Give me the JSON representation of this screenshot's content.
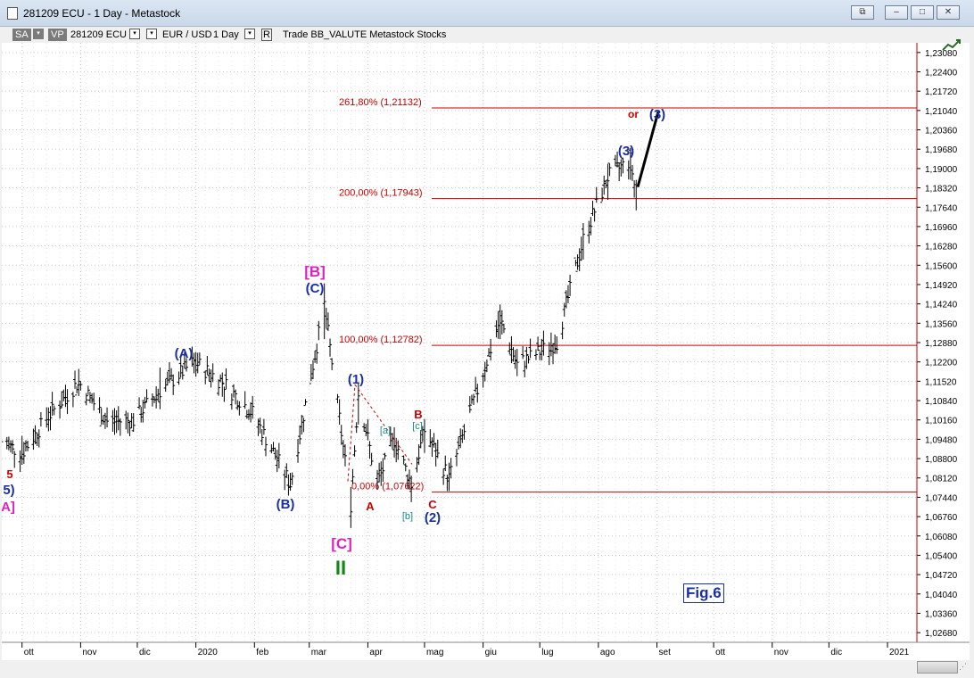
{
  "window": {
    "title": "281209 ECU - 1 Day - Metastock",
    "buttons": [
      "restore-icon",
      "minimize-icon",
      "maximize-icon",
      "close-icon"
    ]
  },
  "toolbar": {
    "sa": "SA",
    "vp": "VP",
    "symbol": "281209 ECU",
    "pair": "EUR / USD",
    "period": "1 Day",
    "r": "R",
    "rest": "Trade  BB_VALUTE  Metastock  Stocks"
  },
  "chart_data": {
    "type": "ohlc",
    "instrument": "EUR / USD",
    "y_ticks": [
      "1,23080",
      "1,22400",
      "1,21720",
      "1,21040",
      "1,20360",
      "1,19680",
      "1,19000",
      "1,18320",
      "1,17640",
      "1,16960",
      "1,16280",
      "1,15600",
      "1,14920",
      "1,14240",
      "1,13560",
      "1,12880",
      "1,12200",
      "1,11520",
      "1,10840",
      "1,10160",
      "1,09480",
      "1,08800",
      "1,08120",
      "1,07440",
      "1,06760",
      "1,06080",
      "1,05400",
      "1,04720",
      "1,04040",
      "1,03360",
      "1,02680"
    ],
    "ylim": [
      1.0234,
      1.2342
    ],
    "x_ticks": [
      "ott",
      "nov",
      "dic",
      "2020",
      "feb",
      "mar",
      "apr",
      "mag",
      "giu",
      "lug",
      "ago",
      "set",
      "ott",
      "nov",
      "dic",
      "2021"
    ],
    "fib_levels": [
      {
        "label": "261,80% (1,21132)",
        "value": 1.21132
      },
      {
        "label": "200,00% (1,17943)",
        "value": 1.17943
      },
      {
        "label": "100,00% (1,12782)",
        "value": 1.12782
      },
      {
        "label": "0,00% (1,07622)",
        "value": 1.07622
      }
    ],
    "wave_labels": {
      "w5_red": "5",
      "w5_blue": "5)",
      "wA_magenta": "A]",
      "A": "(A)",
      "B_lower": "(B)",
      "B_bracket": "[B]",
      "C_upper": "(C)",
      "C_bracket": "[C]",
      "wII": "II",
      "w1": "(1)",
      "a_small": "[a]",
      "b_small": "[b]",
      "c_small": "[c]",
      "A_red": "A",
      "B_red": "B",
      "C_red": "C",
      "w2": "(2)",
      "w3": "(3)",
      "w3_proj": "(3)",
      "or": "or"
    },
    "bars": [
      {
        "x": "2019-09-20",
        "o": 1.095,
        "h": 1.099,
        "l": 1.091,
        "c": 1.094
      },
      {
        "x": "2019-10-01",
        "o": 1.093,
        "h": 1.096,
        "l": 1.0879,
        "c": 1.09
      },
      {
        "x": "2019-10-15",
        "o": 1.1,
        "h": 1.106,
        "l": 1.098,
        "c": 1.103
      },
      {
        "x": "2019-10-31",
        "o": 1.114,
        "h": 1.117,
        "l": 1.11,
        "c": 1.115
      },
      {
        "x": "2019-11-15",
        "o": 1.103,
        "h": 1.106,
        "l": 1.099,
        "c": 1.101
      },
      {
        "x": "2019-11-29",
        "o": 1.101,
        "h": 1.104,
        "l": 1.098,
        "c": 1.1015
      },
      {
        "x": "2019-12-13",
        "o": 1.113,
        "h": 1.12,
        "l": 1.11,
        "c": 1.112
      },
      {
        "x": "2019-12-31",
        "o": 1.12,
        "h": 1.124,
        "l": 1.118,
        "c": 1.122
      },
      {
        "x": "2020-01-15",
        "o": 1.114,
        "h": 1.117,
        "l": 1.11,
        "c": 1.115
      },
      {
        "x": "2020-01-31",
        "o": 1.106,
        "h": 1.109,
        "l": 1.102,
        "c": 1.104
      },
      {
        "x": "2020-02-20",
        "o": 1.08,
        "h": 1.083,
        "l": 1.0778,
        "c": 1.079
      },
      {
        "x": "2020-03-09",
        "o": 1.135,
        "h": 1.1496,
        "l": 1.13,
        "c": 1.142
      },
      {
        "x": "2020-03-23",
        "o": 1.07,
        "h": 1.078,
        "l": 1.0636,
        "c": 1.072
      },
      {
        "x": "2020-03-27",
        "o": 1.105,
        "h": 1.1147,
        "l": 1.1,
        "c": 1.111
      },
      {
        "x": "2020-04-06",
        "o": 1.08,
        "h": 1.084,
        "l": 1.077,
        "c": 1.079
      },
      {
        "x": "2020-04-15",
        "o": 1.097,
        "h": 1.099,
        "l": 1.092,
        "c": 1.095
      },
      {
        "x": "2020-04-24",
        "o": 1.078,
        "h": 1.082,
        "l": 1.0727,
        "c": 1.079
      },
      {
        "x": "2020-05-01",
        "o": 1.095,
        "h": 1.1019,
        "l": 1.09,
        "c": 1.098
      },
      {
        "x": "2020-05-14",
        "o": 1.08,
        "h": 1.084,
        "l": 1.0766,
        "c": 1.081
      },
      {
        "x": "2020-06-10",
        "o": 1.135,
        "h": 1.1422,
        "l": 1.13,
        "c": 1.137
      },
      {
        "x": "2020-06-19",
        "o": 1.12,
        "h": 1.124,
        "l": 1.117,
        "c": 1.121
      },
      {
        "x": "2020-07-10",
        "o": 1.128,
        "h": 1.131,
        "l": 1.125,
        "c": 1.129
      },
      {
        "x": "2020-07-24",
        "o": 1.16,
        "h": 1.166,
        "l": 1.158,
        "c": 1.165
      },
      {
        "x": "2020-08-06",
        "o": 1.185,
        "h": 1.1916,
        "l": 1.179,
        "c": 1.187
      },
      {
        "x": "2020-08-18",
        "o": 1.19,
        "h": 1.1966,
        "l": 1.186,
        "c": 1.193
      },
      {
        "x": "2020-08-21",
        "o": 1.183,
        "h": 1.186,
        "l": 1.1753,
        "c": 1.18
      }
    ]
  }
}
